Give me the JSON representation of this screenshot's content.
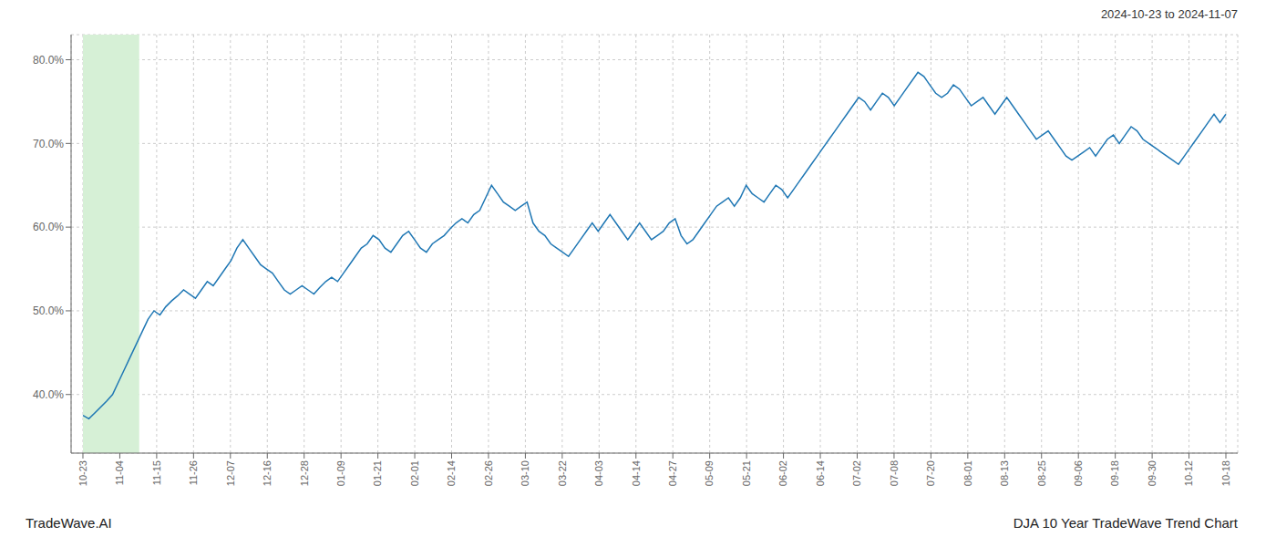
{
  "chart_data": {
    "type": "line",
    "title": "DJA 10 Year TradeWave Trend Chart",
    "subtitle": "2024-10-23 to 2024-11-07",
    "annotations": [
      "TradeWave.AI"
    ],
    "color": "#1f77b4",
    "grid": true,
    "highlight": {
      "xlim": [
        0,
        9.5
      ],
      "color": "#d6f0d6"
    },
    "xlim": [
      -2,
      195
    ],
    "xticks": [
      {
        "value": 0,
        "label": "10-23"
      },
      {
        "value": 6.225806451612903,
        "label": "11-04"
      },
      {
        "value": 12.451612903225806,
        "label": "11-15"
      },
      {
        "value": 18.677419354838708,
        "label": "11-26"
      },
      {
        "value": 24.903225806451612,
        "label": "12-07"
      },
      {
        "value": 31.129032258064516,
        "label": "12-16"
      },
      {
        "value": 37.354838709677416,
        "label": "12-28"
      },
      {
        "value": 43.58064516129032,
        "label": "01-09"
      },
      {
        "value": 49.806451612903224,
        "label": "01-21"
      },
      {
        "value": 56.03225806451613,
        "label": "02-01"
      },
      {
        "value": 62.25806451612903,
        "label": "02-14"
      },
      {
        "value": 68.48387096774194,
        "label": "02-26"
      },
      {
        "value": 74.70967741935483,
        "label": "03-10"
      },
      {
        "value": 80.93548387096774,
        "label": "03-22"
      },
      {
        "value": 87.16129032258064,
        "label": "04-03"
      },
      {
        "value": 93.38709677419355,
        "label": "04-14"
      },
      {
        "value": 99.61290322580645,
        "label": "04-27"
      },
      {
        "value": 105.83870967741936,
        "label": "05-09"
      },
      {
        "value": 112.06451612903226,
        "label": "05-21"
      },
      {
        "value": 118.29032258064517,
        "label": "06-02"
      },
      {
        "value": 124.51612903225806,
        "label": "06-14"
      },
      {
        "value": 130.74193548387098,
        "label": "07-02"
      },
      {
        "value": 136.96774193548387,
        "label": "07-08"
      },
      {
        "value": 143.19354838709677,
        "label": "07-20"
      },
      {
        "value": 149.41935483870967,
        "label": "08-01"
      },
      {
        "value": 155.6451612903226,
        "label": "08-13"
      },
      {
        "value": 161.8709677419355,
        "label": "08-25"
      },
      {
        "value": 168.09677419354838,
        "label": "09-06"
      },
      {
        "value": 174.32258064516128,
        "label": "09-18"
      },
      {
        "value": 180.5483870967742,
        "label": "09-30"
      },
      {
        "value": 186.7741935483871,
        "label": "10-12"
      },
      {
        "value": 193,
        "label": "10-18"
      }
    ],
    "ylim": [
      33,
      83
    ],
    "yticks": [
      {
        "value": 40.0,
        "label": "40.0%"
      },
      {
        "value": 50.0,
        "label": "50.0%"
      },
      {
        "value": 60.0,
        "label": "60.0%"
      },
      {
        "value": 70.0,
        "label": "70.0%"
      },
      {
        "value": 80.0,
        "label": "80.0%"
      }
    ],
    "x": [
      0,
      1,
      2,
      3,
      4,
      5,
      6,
      7,
      8,
      9,
      10,
      11,
      12,
      13,
      14,
      15,
      16,
      17,
      18,
      19,
      20,
      21,
      22,
      23,
      24,
      25,
      26,
      27,
      28,
      29,
      30,
      31,
      32,
      33,
      34,
      35,
      36,
      37,
      38,
      39,
      40,
      41,
      42,
      43,
      44,
      45,
      46,
      47,
      48,
      49,
      50,
      51,
      52,
      53,
      54,
      55,
      56,
      57,
      58,
      59,
      60,
      61,
      62,
      63,
      64,
      65,
      66,
      67,
      68,
      69,
      70,
      71,
      72,
      73,
      74,
      75,
      76,
      77,
      78,
      79,
      80,
      81,
      82,
      83,
      84,
      85,
      86,
      87,
      88,
      89,
      90,
      91,
      92,
      93,
      94,
      95,
      96,
      97,
      98,
      99,
      100,
      101,
      102,
      103,
      104,
      105,
      106,
      107,
      108,
      109,
      110,
      111,
      112,
      113,
      114,
      115,
      116,
      117,
      118,
      119,
      120,
      121,
      122,
      123,
      124,
      125,
      126,
      127,
      128,
      129,
      130,
      131,
      132,
      133,
      134,
      135,
      136,
      137,
      138,
      139,
      140,
      141,
      142,
      143,
      144,
      145,
      146,
      147,
      148,
      149,
      150,
      151,
      152,
      153,
      154,
      155,
      156,
      157,
      158,
      159,
      160,
      161,
      162,
      163,
      164,
      165,
      166,
      167,
      168,
      169,
      170,
      171,
      172,
      173,
      174,
      175,
      176,
      177,
      178,
      179,
      180,
      181,
      182,
      183,
      184,
      185,
      186,
      187,
      188,
      189,
      190,
      191,
      192,
      193
    ],
    "values": [
      37.5,
      37.1,
      37.8,
      38.5,
      39.2,
      40.0,
      41.5,
      43.0,
      44.5,
      46.0,
      47.5,
      49.0,
      50.0,
      49.5,
      50.5,
      51.2,
      51.8,
      52.5,
      52.0,
      51.5,
      52.5,
      53.5,
      53.0,
      54.0,
      55.0,
      56.0,
      57.5,
      58.5,
      57.5,
      56.5,
      55.5,
      55.0,
      54.5,
      53.5,
      52.5,
      52.0,
      52.5,
      53.0,
      52.5,
      52.0,
      52.8,
      53.5,
      54.0,
      53.5,
      54.5,
      55.5,
      56.5,
      57.5,
      58.0,
      59.0,
      58.5,
      57.5,
      57.0,
      58.0,
      59.0,
      59.5,
      58.5,
      57.5,
      57.0,
      58.0,
      58.5,
      59.0,
      59.8,
      60.5,
      61.0,
      60.5,
      61.5,
      62.0,
      63.5,
      65.0,
      64.0,
      63.0,
      62.5,
      62.0,
      62.5,
      63.0,
      60.5,
      59.5,
      59.0,
      58.0,
      57.5,
      57.0,
      56.5,
      57.5,
      58.5,
      59.5,
      60.5,
      59.5,
      60.5,
      61.5,
      60.5,
      59.5,
      58.5,
      59.5,
      60.5,
      59.5,
      58.5,
      59.0,
      59.5,
      60.5,
      61.0,
      59.0,
      58.0,
      58.5,
      59.5,
      60.5,
      61.5,
      62.5,
      63.0,
      63.5,
      62.5,
      63.5,
      65.0,
      64.0,
      63.5,
      63.0,
      64.0,
      65.0,
      64.5,
      63.5,
      64.5,
      65.5,
      66.5,
      67.5,
      68.5,
      69.5,
      70.5,
      71.5,
      72.5,
      73.5,
      74.5,
      75.5,
      75.0,
      74.0,
      75.0,
      76.0,
      75.5,
      74.5,
      75.5,
      76.5,
      77.5,
      78.5,
      78.0,
      77.0,
      76.0,
      75.5,
      76.0,
      77.0,
      76.5,
      75.5,
      74.5,
      75.0,
      75.5,
      74.5,
      73.5,
      74.5,
      75.5,
      74.5,
      73.5,
      72.5,
      71.5,
      70.5,
      71.0,
      71.5,
      70.5,
      69.5,
      68.5,
      68.0,
      68.5,
      69.0,
      69.5,
      68.5,
      69.5,
      70.5,
      71.0,
      70.0,
      71.0,
      72.0,
      71.5,
      70.5,
      70.0,
      69.5,
      69.0,
      68.5,
      68.0,
      67.5,
      68.5,
      69.5,
      70.5,
      71.5,
      72.5,
      73.5,
      72.5,
      73.5
    ]
  }
}
